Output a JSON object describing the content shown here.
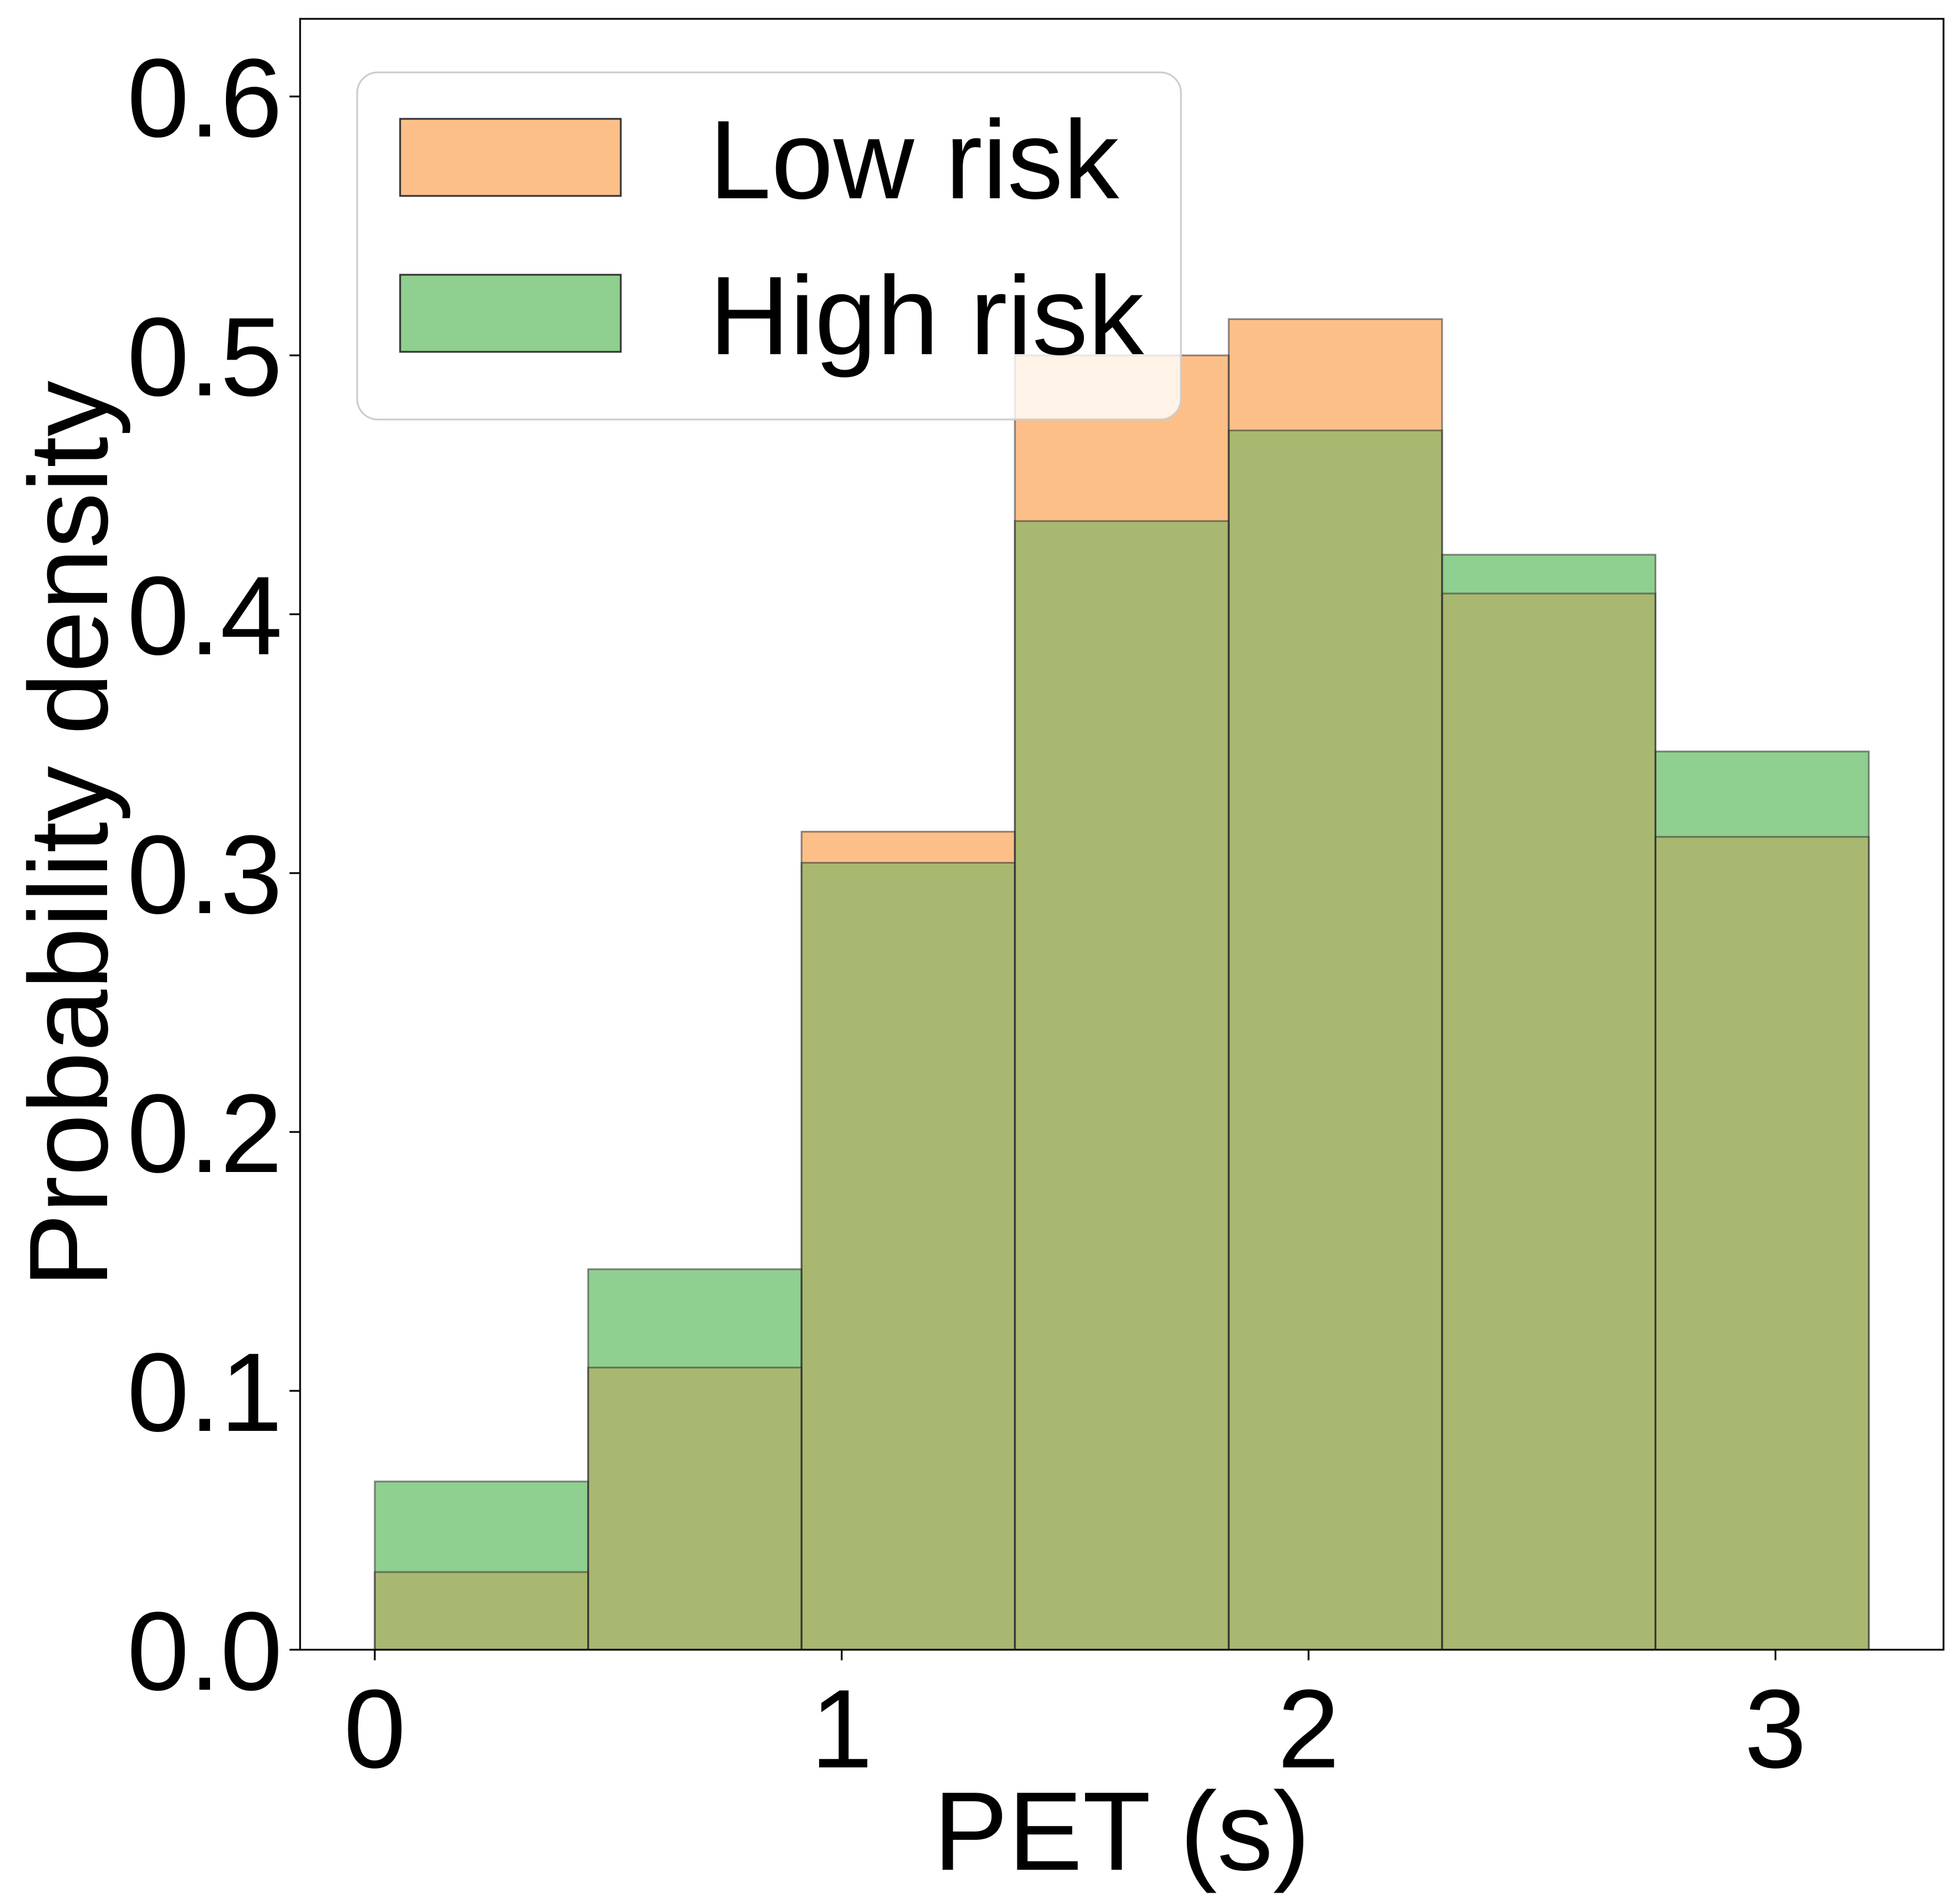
{
  "chart_data": {
    "type": "bar",
    "subtype": "overlapping-histogram",
    "xlabel": "PET (s)",
    "ylabel": "Probability density",
    "xlim": [
      -0.16,
      3.36
    ],
    "ylim": [
      0,
      0.63
    ],
    "bin_edges": [
      0,
      0.457,
      0.914,
      1.371,
      1.829,
      2.286,
      2.743,
      3.2
    ],
    "xticks": [
      0,
      1,
      2,
      3
    ],
    "xtick_labels": [
      "0",
      "1",
      "2",
      "3"
    ],
    "yticks": [
      0.0,
      0.1,
      0.2,
      0.3,
      0.4,
      0.5,
      0.6
    ],
    "ytick_labels": [
      "0.0",
      "0.1",
      "0.2",
      "0.3",
      "0.4",
      "0.5",
      "0.6"
    ],
    "grid": false,
    "legend_position": "top-left",
    "series": [
      {
        "name": "Low risk",
        "color": "#fdbf88",
        "values": [
          0.03,
          0.109,
          0.316,
          0.5,
          0.514,
          0.408,
          0.314
        ]
      },
      {
        "name": "High risk",
        "color": "#8fcf8f",
        "values": [
          0.065,
          0.147,
          0.304,
          0.436,
          0.471,
          0.423,
          0.347
        ]
      }
    ],
    "overlap_color": "#a9b870",
    "edge_color": "#333333"
  }
}
